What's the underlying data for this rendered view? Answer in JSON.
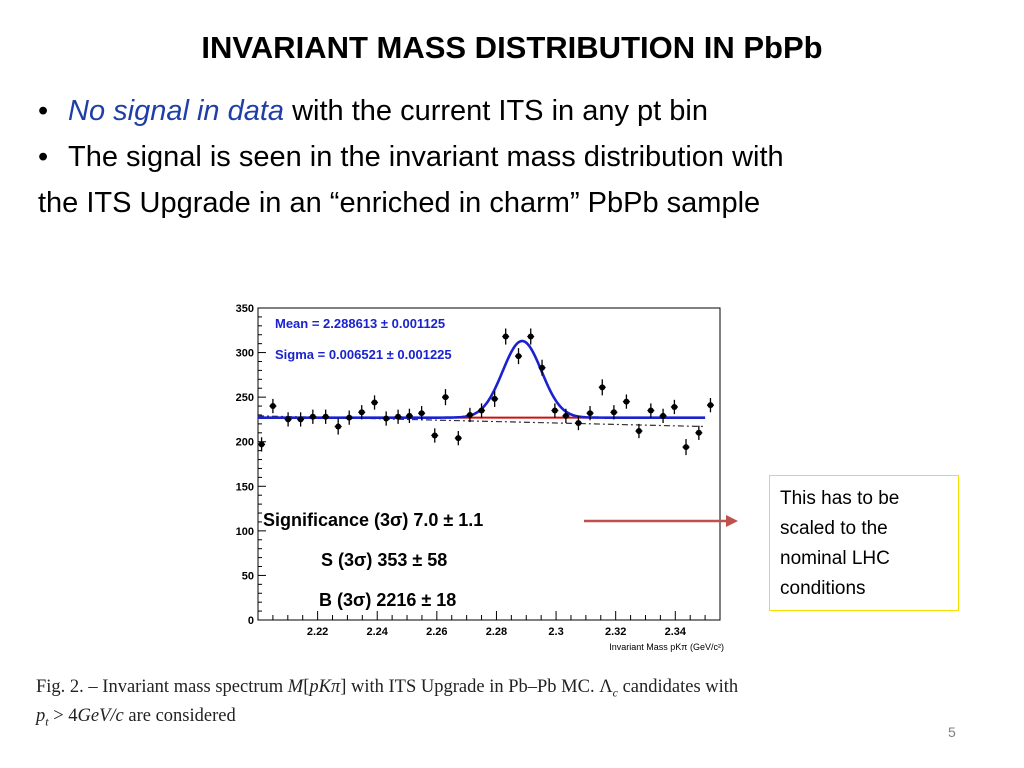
{
  "slide": {
    "title": "INVARIANT MASS DISTRIBUTION IN PbPb",
    "bullets": [
      {
        "marker": "•",
        "emphasis": "No signal in data",
        "text": " with the current ITS in any pt bin"
      },
      {
        "marker": "•",
        "text": "The signal is seen in the invariant mass distribution with"
      }
    ],
    "continuation": "the ITS Upgrade in an “enriched in charm” PbPb sample",
    "note_lines": [
      "This has to be",
      "scaled to the",
      "nominal LHC",
      "conditions"
    ],
    "caption": {
      "line1_a": "Fig. 2. – Invariant mass spectrum ",
      "line1_m": "M",
      "line1_b": "[",
      "line1_p": "pKπ",
      "line1_c": "] with ITS Upgrade in Pb–Pb MC. ",
      "line1_l": "Λ",
      "line1_lsub": "c",
      "line1_d": " candidates with",
      "line2_a": "p",
      "line2_sub": "t",
      "line2_b": " > 4",
      "line2_c": "GeV/c",
      "line2_d": " are considered"
    },
    "page_number": "5"
  },
  "colors": {
    "fit_curve": "#1a22d0",
    "signal_baseline": "#cc1111",
    "background_line": "#333333",
    "arrow": "#c0504d",
    "stats_text": "#1a22d0",
    "note_border": "#f2e000"
  },
  "chart_data": {
    "type": "scatter",
    "xlabel": "Invariant Mass pKπ (GeV/c²)",
    "xlim": [
      2.2,
      2.355
    ],
    "ylim": [
      0,
      350
    ],
    "x_ticks": [
      2.22,
      2.24,
      2.26,
      2.28,
      2.3,
      2.32,
      2.34
    ],
    "x_tick_labels": [
      "2.22",
      "2.24",
      "2.26",
      "2.28",
      "2.3",
      "2.32",
      "2.34"
    ],
    "y_ticks": [
      0,
      50,
      100,
      150,
      200,
      250,
      300,
      350
    ],
    "y_tick_labels": [
      "0",
      "50",
      "100",
      "150",
      "200",
      "250",
      "300",
      "350"
    ],
    "points": {
      "x": [
        2.2012,
        2.205,
        2.2101,
        2.2143,
        2.2184,
        2.2227,
        2.2269,
        2.2306,
        2.2348,
        2.2391,
        2.243,
        2.247,
        2.2508,
        2.2549,
        2.2593,
        2.2629,
        2.2672,
        2.2711,
        2.275,
        2.2794,
        2.2831,
        2.2874,
        2.2915,
        2.2953,
        2.2996,
        2.3033,
        2.3075,
        2.3114,
        2.3155,
        2.3194,
        2.3236,
        2.3278,
        2.3318,
        2.3359,
        2.3397,
        2.3436,
        2.3479,
        2.3518
      ],
      "y": [
        197,
        240,
        225,
        225,
        228,
        228,
        217,
        227,
        233,
        244,
        226,
        228,
        229,
        232,
        207,
        250,
        204,
        230,
        235,
        248,
        318,
        296,
        318,
        283,
        235,
        229,
        221,
        232,
        261,
        233,
        245,
        212,
        235,
        229,
        239,
        194,
        210,
        241
      ],
      "y_error": [
        8,
        8,
        8,
        8,
        8,
        8,
        9,
        8,
        8,
        8,
        8,
        8,
        8,
        8,
        8,
        9,
        8,
        8,
        8,
        9,
        9,
        9,
        9,
        9,
        8,
        8,
        8,
        8,
        9,
        8,
        8,
        8,
        8,
        8,
        8,
        9,
        8,
        8
      ]
    },
    "fit": {
      "mean": 2.288613,
      "sigma": 0.006521,
      "amplitude": 86,
      "background": 227,
      "x_range": [
        2.2,
        2.35
      ]
    },
    "signal_baseline": {
      "y": 227,
      "x_range": [
        2.267,
        2.312
      ]
    },
    "background_trend": {
      "x_range": [
        2.2,
        2.35
      ],
      "y": [
        229,
        217
      ]
    },
    "annotations": {
      "mean": "Mean = 2.288613 ± 0.001125",
      "sigma": "Sigma = 0.006521 ± 0.001225",
      "significance": "Significance (3σ) 7.0 ± 1.1",
      "signal": "S (3σ) 353 ± 58",
      "background": "B (3σ) 2216 ± 18"
    }
  }
}
